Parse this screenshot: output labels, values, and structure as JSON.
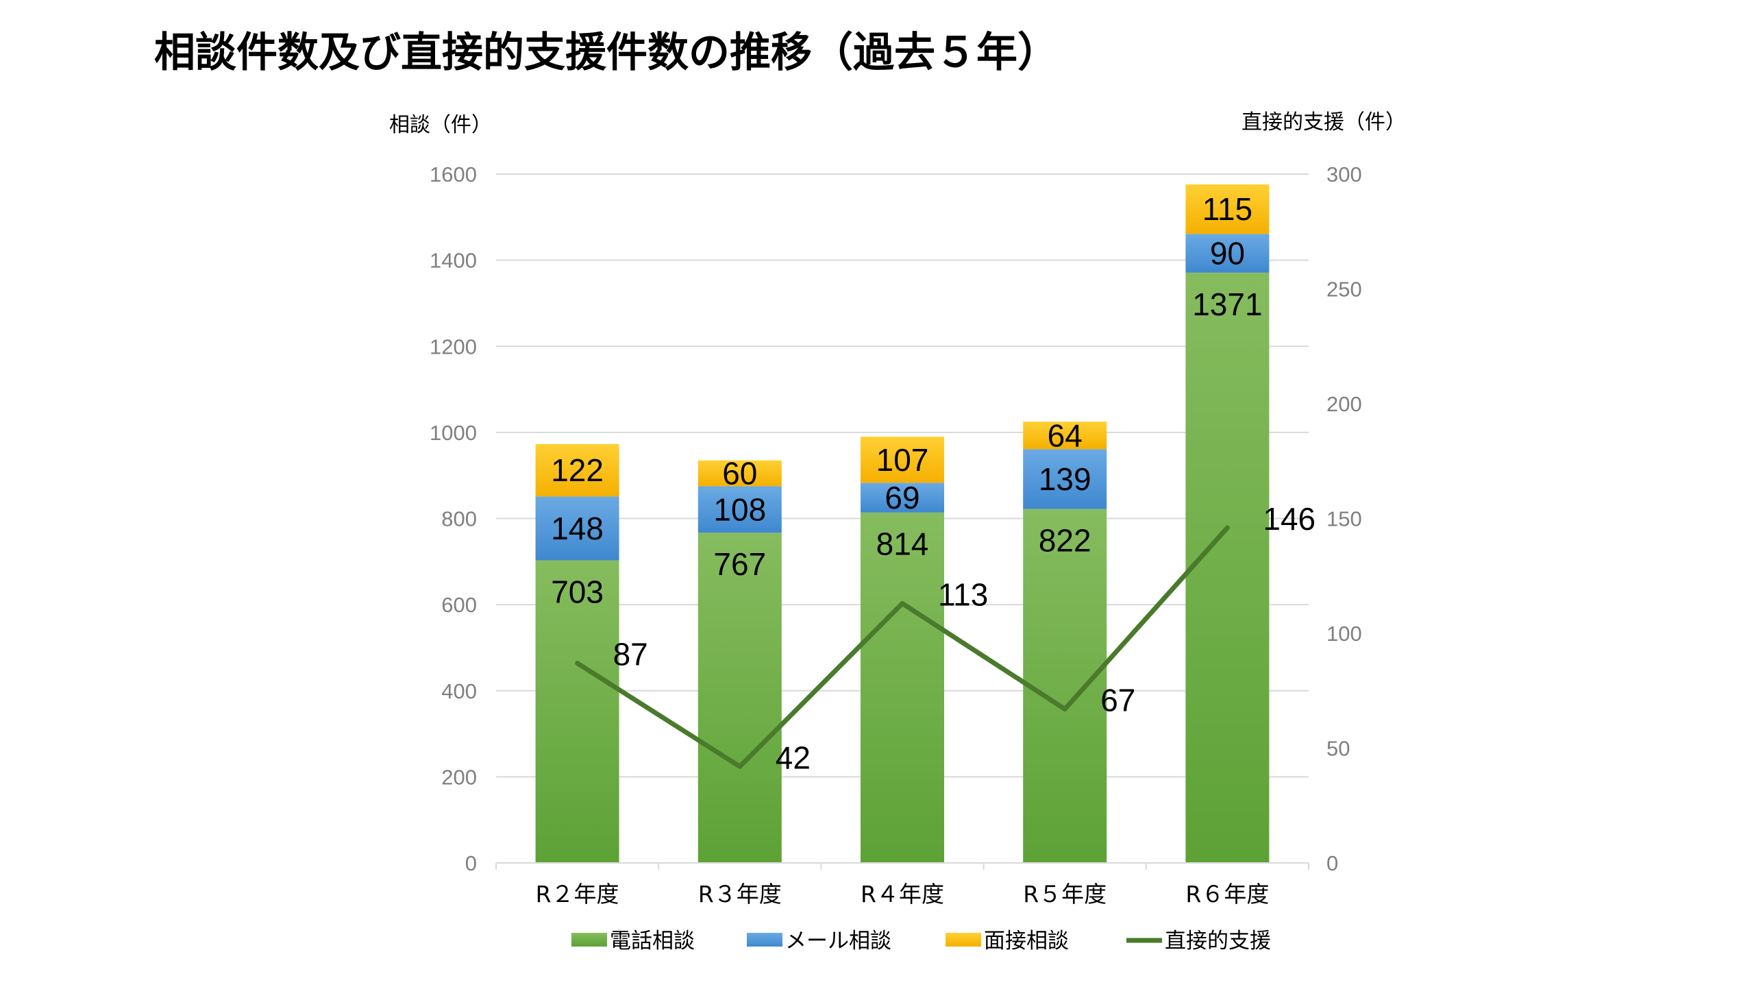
{
  "page": {
    "title": "相談件数及び直接的支援件数の推移（過去５年）"
  },
  "chart_data": {
    "type": "bar",
    "stacked": true,
    "categories": [
      "R２年度",
      "R３年度",
      "R４年度",
      "R５年度",
      "R６年度"
    ],
    "series": [
      {
        "name": "電話相談",
        "type": "bar",
        "axis": "left",
        "color": "#70ad47",
        "values": [
          703,
          767,
          814,
          822,
          1371
        ]
      },
      {
        "name": "メール相談",
        "type": "bar",
        "axis": "left",
        "color": "#5b9bd5",
        "values": [
          148,
          108,
          69,
          139,
          90
        ]
      },
      {
        "name": "面接相談",
        "type": "bar",
        "axis": "left",
        "color": "#ffc000",
        "values": [
          122,
          60,
          107,
          64,
          115
        ]
      },
      {
        "name": "直接的支援",
        "type": "line",
        "axis": "right",
        "color": "#4a7a2c",
        "values": [
          87,
          42,
          113,
          67,
          146
        ]
      }
    ],
    "ylabel": "相談（件）",
    "y2label": "直接的支援（件）",
    "ylim": [
      0,
      1600
    ],
    "yticks": [
      0,
      200,
      400,
      600,
      800,
      1000,
      1200,
      1400,
      1600
    ],
    "y2lim": [
      0,
      300
    ],
    "y2ticks": [
      0,
      50,
      100,
      150,
      200,
      250,
      300
    ],
    "grid": true,
    "legend_position": "bottom"
  }
}
